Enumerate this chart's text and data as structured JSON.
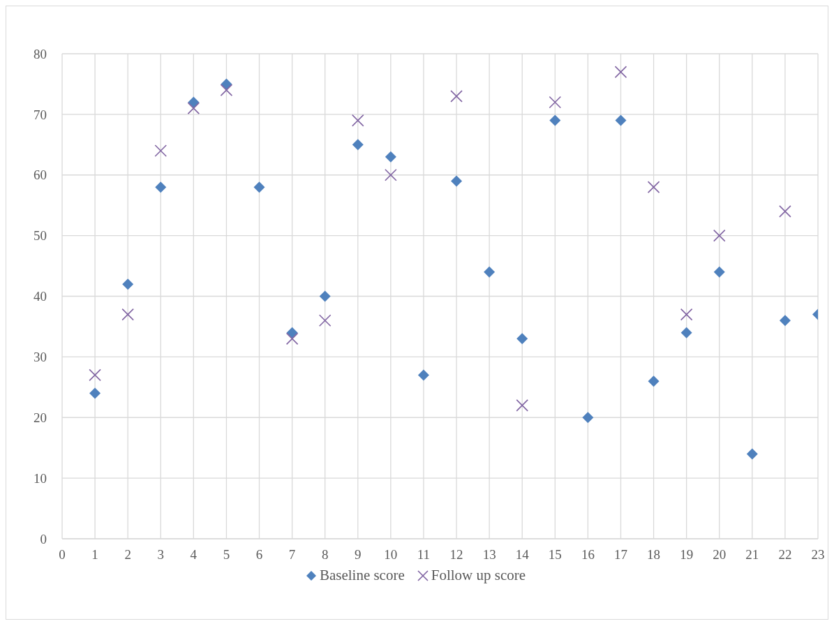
{
  "chart_data": {
    "type": "scatter",
    "x": [
      1,
      2,
      3,
      4,
      5,
      6,
      7,
      8,
      9,
      10,
      11,
      12,
      13,
      14,
      15,
      16,
      17,
      18,
      19,
      20,
      21,
      22,
      23
    ],
    "series": [
      {
        "name": "Baseline score",
        "color": "#4f81bd",
        "marker": "diamond",
        "values": [
          24,
          42,
          58,
          72,
          75,
          58,
          34,
          40,
          65,
          63,
          27,
          59,
          44,
          33,
          69,
          20,
          69,
          26,
          34,
          44,
          14,
          36,
          37
        ]
      },
      {
        "name": "Follow up score",
        "color": "#8064a2",
        "marker": "cross",
        "values": [
          27,
          37,
          64,
          71,
          74,
          null,
          33,
          36,
          69,
          60,
          null,
          73,
          null,
          22,
          72,
          null,
          77,
          58,
          37,
          50,
          null,
          54,
          null
        ]
      }
    ],
    "xlim": [
      0,
      23
    ],
    "xticks": [
      0,
      1,
      2,
      3,
      4,
      5,
      6,
      7,
      8,
      9,
      10,
      11,
      12,
      13,
      14,
      15,
      16,
      17,
      18,
      19,
      20,
      21,
      22,
      23
    ],
    "ylim": [
      0,
      80
    ],
    "yticks": [
      0,
      10,
      20,
      30,
      40,
      50,
      60,
      70,
      80
    ],
    "grid": true,
    "legend": "bottom"
  }
}
